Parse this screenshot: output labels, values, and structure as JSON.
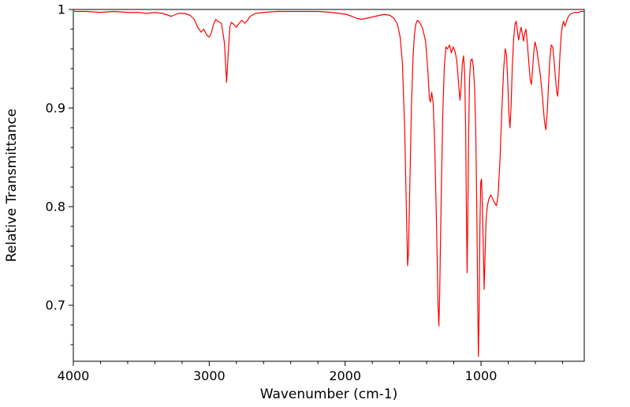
{
  "chart_data": {
    "type": "line",
    "title": "",
    "xlabel": "Wavenumber (cm-1)",
    "ylabel": "Relative Transmittance",
    "x_range": [
      4000,
      240
    ],
    "y_range": [
      0.6432,
      1.0
    ],
    "x_ticks": [
      {
        "value": 4000,
        "label": "4000"
      },
      {
        "value": 3000,
        "label": "3000"
      },
      {
        "value": 2000,
        "label": "2000"
      },
      {
        "value": 1000,
        "label": "1000"
      }
    ],
    "y_ticks": [
      {
        "value": 1.0,
        "label": "1"
      },
      {
        "value": 0.9,
        "label": "0.9"
      },
      {
        "value": 0.8,
        "label": "0.8"
      },
      {
        "value": 0.7,
        "label": "0.7"
      }
    ],
    "x_minor_step": 200,
    "y_minor_step": 0.02,
    "grid": false,
    "legend": null,
    "line_color": "#ff0000",
    "background": "#ffffff",
    "x_axis_descending": true,
    "points": [
      [
        4000,
        0.998
      ],
      [
        3900,
        0.998
      ],
      [
        3800,
        0.997
      ],
      [
        3700,
        0.998
      ],
      [
        3600,
        0.997
      ],
      [
        3520,
        0.997
      ],
      [
        3460,
        0.996
      ],
      [
        3400,
        0.997
      ],
      [
        3340,
        0.996
      ],
      [
        3280,
        0.993
      ],
      [
        3230,
        0.996
      ],
      [
        3180,
        0.996
      ],
      [
        3140,
        0.994
      ],
      [
        3110,
        0.99
      ],
      [
        3085,
        0.982
      ],
      [
        3060,
        0.977
      ],
      [
        3040,
        0.98
      ],
      [
        3018,
        0.974
      ],
      [
        3000,
        0.972
      ],
      [
        2985,
        0.976
      ],
      [
        2968,
        0.985
      ],
      [
        2952,
        0.99
      ],
      [
        2938,
        0.988
      ],
      [
        2910,
        0.986
      ],
      [
        2888,
        0.966
      ],
      [
        2872,
        0.926
      ],
      [
        2860,
        0.956
      ],
      [
        2848,
        0.982
      ],
      [
        2838,
        0.987
      ],
      [
        2820,
        0.985
      ],
      [
        2800,
        0.982
      ],
      [
        2780,
        0.986
      ],
      [
        2760,
        0.989
      ],
      [
        2738,
        0.986
      ],
      [
        2718,
        0.989
      ],
      [
        2700,
        0.993
      ],
      [
        2660,
        0.996
      ],
      [
        2600,
        0.997
      ],
      [
        2500,
        0.998
      ],
      [
        2400,
        0.998
      ],
      [
        2300,
        0.998
      ],
      [
        2200,
        0.998
      ],
      [
        2100,
        0.997
      ],
      [
        2040,
        0.996
      ],
      [
        1990,
        0.995
      ],
      [
        1950,
        0.993
      ],
      [
        1915,
        0.991
      ],
      [
        1880,
        0.99
      ],
      [
        1845,
        0.991
      ],
      [
        1810,
        0.992
      ],
      [
        1780,
        0.993
      ],
      [
        1750,
        0.994
      ],
      [
        1710,
        0.995
      ],
      [
        1670,
        0.994
      ],
      [
        1640,
        0.991
      ],
      [
        1615,
        0.985
      ],
      [
        1595,
        0.972
      ],
      [
        1578,
        0.945
      ],
      [
        1562,
        0.88
      ],
      [
        1548,
        0.79
      ],
      [
        1540,
        0.74
      ],
      [
        1534,
        0.752
      ],
      [
        1524,
        0.82
      ],
      [
        1512,
        0.9
      ],
      [
        1500,
        0.952
      ],
      [
        1490,
        0.974
      ],
      [
        1480,
        0.985
      ],
      [
        1468,
        0.989
      ],
      [
        1452,
        0.987
      ],
      [
        1430,
        0.981
      ],
      [
        1408,
        0.968
      ],
      [
        1392,
        0.94
      ],
      [
        1380,
        0.91
      ],
      [
        1372,
        0.906
      ],
      [
        1363,
        0.916
      ],
      [
        1352,
        0.905
      ],
      [
        1340,
        0.86
      ],
      [
        1327,
        0.78
      ],
      [
        1316,
        0.7
      ],
      [
        1310,
        0.679
      ],
      [
        1304,
        0.712
      ],
      [
        1294,
        0.8
      ],
      [
        1282,
        0.89
      ],
      [
        1270,
        0.942
      ],
      [
        1258,
        0.962
      ],
      [
        1246,
        0.96
      ],
      [
        1232,
        0.964
      ],
      [
        1218,
        0.956
      ],
      [
        1205,
        0.962
      ],
      [
        1192,
        0.958
      ],
      [
        1178,
        0.948
      ],
      [
        1165,
        0.925
      ],
      [
        1155,
        0.908
      ],
      [
        1146,
        0.922
      ],
      [
        1137,
        0.945
      ],
      [
        1128,
        0.953
      ],
      [
        1120,
        0.935
      ],
      [
        1113,
        0.88
      ],
      [
        1107,
        0.79
      ],
      [
        1102,
        0.733
      ],
      [
        1097,
        0.79
      ],
      [
        1091,
        0.875
      ],
      [
        1084,
        0.93
      ],
      [
        1076,
        0.948
      ],
      [
        1066,
        0.95
      ],
      [
        1056,
        0.942
      ],
      [
        1047,
        0.92
      ],
      [
        1039,
        0.88
      ],
      [
        1031,
        0.8
      ],
      [
        1024,
        0.7
      ],
      [
        1019,
        0.648
      ],
      [
        1014,
        0.69
      ],
      [
        1008,
        0.78
      ],
      [
        1002,
        0.825
      ],
      [
        996,
        0.828
      ],
      [
        990,
        0.8
      ],
      [
        983,
        0.76
      ],
      [
        977,
        0.716
      ],
      [
        971,
        0.745
      ],
      [
        963,
        0.785
      ],
      [
        954,
        0.8
      ],
      [
        942,
        0.808
      ],
      [
        928,
        0.812
      ],
      [
        914,
        0.808
      ],
      [
        900,
        0.804
      ],
      [
        886,
        0.801
      ],
      [
        874,
        0.812
      ],
      [
        860,
        0.848
      ],
      [
        846,
        0.9
      ],
      [
        833,
        0.94
      ],
      [
        822,
        0.96
      ],
      [
        813,
        0.955
      ],
      [
        804,
        0.93
      ],
      [
        795,
        0.896
      ],
      [
        787,
        0.88
      ],
      [
        779,
        0.9
      ],
      [
        770,
        0.94
      ],
      [
        760,
        0.97
      ],
      [
        750,
        0.985
      ],
      [
        741,
        0.988
      ],
      [
        732,
        0.978
      ],
      [
        723,
        0.969
      ],
      [
        714,
        0.976
      ],
      [
        705,
        0.982
      ],
      [
        696,
        0.975
      ],
      [
        687,
        0.968
      ],
      [
        678,
        0.976
      ],
      [
        669,
        0.98
      ],
      [
        659,
        0.966
      ],
      [
        648,
        0.946
      ],
      [
        638,
        0.929
      ],
      [
        629,
        0.924
      ],
      [
        620,
        0.94
      ],
      [
        611,
        0.958
      ],
      [
        602,
        0.967
      ],
      [
        590,
        0.96
      ],
      [
        576,
        0.946
      ],
      [
        562,
        0.932
      ],
      [
        548,
        0.912
      ],
      [
        534,
        0.888
      ],
      [
        523,
        0.878
      ],
      [
        513,
        0.894
      ],
      [
        503,
        0.924
      ],
      [
        493,
        0.95
      ],
      [
        483,
        0.964
      ],
      [
        472,
        0.962
      ],
      [
        461,
        0.946
      ],
      [
        451,
        0.929
      ],
      [
        442,
        0.916
      ],
      [
        435,
        0.912
      ],
      [
        427,
        0.93
      ],
      [
        419,
        0.954
      ],
      [
        410,
        0.974
      ],
      [
        401,
        0.984
      ],
      [
        391,
        0.988
      ],
      [
        383,
        0.983
      ],
      [
        375,
        0.986
      ],
      [
        366,
        0.99
      ],
      [
        356,
        0.993
      ],
      [
        344,
        0.995
      ],
      [
        330,
        0.996
      ],
      [
        314,
        0.997
      ],
      [
        298,
        0.997
      ],
      [
        282,
        0.997
      ],
      [
        266,
        0.998
      ],
      [
        252,
        0.998
      ],
      [
        240,
        0.998
      ]
    ]
  }
}
